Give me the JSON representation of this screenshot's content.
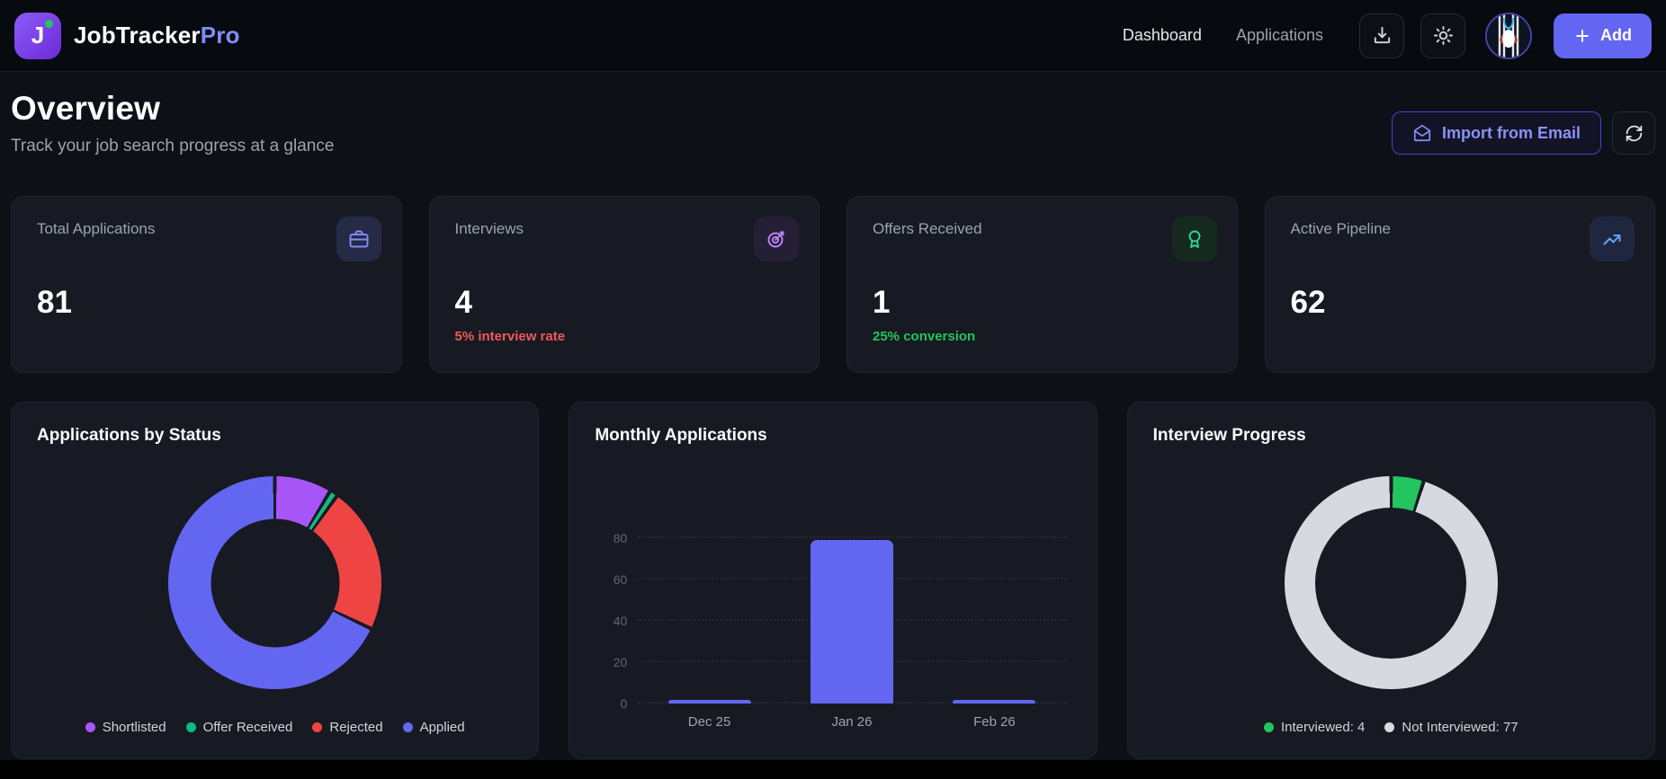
{
  "nav": {
    "logo_letter": "J",
    "brand_name": "JobTracker",
    "brand_suffix": "Pro",
    "links": [
      {
        "label": "Dashboard",
        "active": true
      },
      {
        "label": "Applications",
        "active": false
      }
    ],
    "add_button_label": "Add"
  },
  "header": {
    "title": "Overview",
    "subtitle": "Track your job search progress at a glance",
    "import_button_label": "Import from Email"
  },
  "stats": [
    {
      "label": "Total Applications",
      "value": "81",
      "icon": "briefcase-icon",
      "icon_color": "#818cf8",
      "icon_bg": "#252a45",
      "subtitle": ""
    },
    {
      "label": "Interviews",
      "value": "4",
      "icon": "target-icon",
      "icon_color": "#c084fc",
      "icon_bg": "#251f36",
      "subtitle": "5% interview rate",
      "subtitle_color": "#ef5a5a"
    },
    {
      "label": "Offers Received",
      "value": "1",
      "icon": "award-icon",
      "icon_color": "#34d399",
      "icon_bg": "#16291f",
      "subtitle": "25% conversion",
      "subtitle_color": "#22c55e"
    },
    {
      "label": "Active Pipeline",
      "value": "62",
      "icon": "trending-up-icon",
      "icon_color": "#60a5fa",
      "icon_bg": "#1f2740",
      "subtitle": ""
    }
  ],
  "chart_data": [
    {
      "type": "pie",
      "donut": true,
      "title": "Applications by Status",
      "labels": [
        "Shortlisted",
        "Offer Received",
        "Rejected",
        "Applied"
      ],
      "values": [
        7,
        1,
        18,
        55
      ],
      "colors": [
        "#a855f7",
        "#10b981",
        "#ef4444",
        "#6366f1"
      ],
      "legend_position": "bottom"
    },
    {
      "type": "bar",
      "title": "Monthly Applications",
      "categories": [
        "Dec 25",
        "Jan 26",
        "Feb 26"
      ],
      "values": [
        1,
        79,
        1
      ],
      "color": "#6366f1",
      "yticks": [
        0,
        20,
        40,
        60,
        80
      ],
      "ylim": [
        0,
        92
      ],
      "grid": "dotted-horizontal",
      "xlabel": "",
      "ylabel": ""
    },
    {
      "type": "pie",
      "donut": true,
      "title": "Interview Progress",
      "labels": [
        "Interviewed: 4",
        "Not Interviewed: 77"
      ],
      "values": [
        4,
        77
      ],
      "colors": [
        "#22c55e",
        "#d7d9e0"
      ],
      "legend_position": "bottom"
    }
  ]
}
